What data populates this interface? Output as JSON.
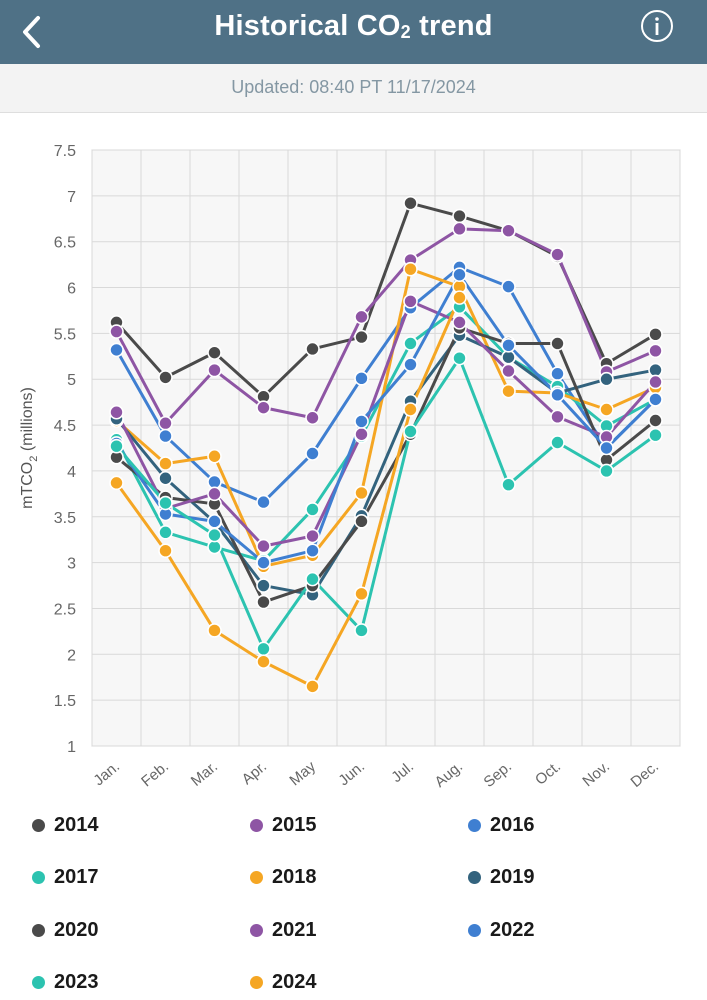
{
  "header": {
    "title_main": "Historical CO",
    "title_sub": "2",
    "title_end": " trend"
  },
  "updated": "Updated: 08:40 PT 11/17/2024",
  "chart_data": {
    "type": "line",
    "title": "Historical CO2 trend",
    "ylabel_main": "mTCO",
    "ylabel_sub": "2",
    "ylabel_end": " (millions)",
    "ylim": [
      1,
      7.5
    ],
    "yticks": [
      "1",
      "1.5",
      "2",
      "2.5",
      "3",
      "3.5",
      "4",
      "4.5",
      "5",
      "5.5",
      "6",
      "6.5",
      "7",
      "7.5"
    ],
    "categories": [
      "Jan.",
      "Feb.",
      "Mar.",
      "Apr.",
      "May",
      "Jun.",
      "Jul.",
      "Aug.",
      "Sep.",
      "Oct.",
      "Nov.",
      "Dec."
    ],
    "grid": true,
    "series": [
      {
        "name": "2014",
        "color": "#4a4a4a",
        "values": [
          5.62,
          5.02,
          5.29,
          4.81,
          5.33,
          5.46,
          6.92,
          6.78,
          6.62,
          6.34,
          5.17,
          5.49
        ]
      },
      {
        "name": "2015",
        "color": "#8e55a4",
        "values": [
          5.52,
          4.52,
          5.1,
          4.69,
          4.58,
          5.68,
          6.3,
          6.64,
          6.62,
          6.36,
          5.08,
          5.31
        ]
      },
      {
        "name": "2016",
        "color": "#3f7fd1",
        "values": [
          5.32,
          4.38,
          3.88,
          3.66,
          4.19,
          5.01,
          5.78,
          6.22,
          6.01,
          5.06,
          4.25,
          4.78
        ]
      },
      {
        "name": "2017",
        "color": "#2cc3b0",
        "values": [
          4.34,
          3.33,
          3.17,
          3.02,
          3.58,
          4.38,
          5.39,
          5.79,
          5.24,
          4.92,
          4.49,
          4.78
        ]
      },
      {
        "name": "2018",
        "color": "#f5a623",
        "values": [
          4.55,
          4.08,
          4.16,
          2.96,
          3.08,
          3.76,
          6.2,
          6.01,
          4.87,
          4.85,
          4.67,
          4.91
        ]
      },
      {
        "name": "2019",
        "color": "#33637e",
        "values": [
          4.57,
          3.92,
          3.44,
          2.75,
          2.65,
          3.51,
          4.76,
          5.48,
          5.24,
          4.85,
          5.0,
          5.1
        ]
      },
      {
        "name": "2020",
        "color": "#4a4a4a",
        "values": [
          4.15,
          3.71,
          3.64,
          2.57,
          2.75,
          3.45,
          4.4,
          5.56,
          5.39,
          5.39,
          4.12,
          4.55
        ]
      },
      {
        "name": "2021",
        "color": "#8e55a4",
        "values": [
          4.64,
          3.59,
          3.75,
          3.18,
          3.29,
          4.4,
          5.85,
          5.62,
          5.09,
          4.59,
          4.37,
          4.97
        ]
      },
      {
        "name": "2022",
        "color": "#3f7fd1",
        "values": [
          4.3,
          3.53,
          3.45,
          3.0,
          3.13,
          4.54,
          5.16,
          6.14,
          5.37,
          4.83,
          4.25,
          4.78
        ]
      },
      {
        "name": "2023",
        "color": "#2cc3b0",
        "values": [
          4.27,
          3.65,
          3.3,
          2.06,
          2.82,
          2.26,
          4.43,
          5.23,
          3.85,
          4.31,
          4.0,
          4.39
        ]
      },
      {
        "name": "2024",
        "color": "#f5a623",
        "values": [
          3.87,
          3.13,
          2.26,
          1.92,
          1.65,
          2.66,
          4.67,
          5.89,
          null,
          null,
          null,
          null
        ]
      }
    ]
  }
}
